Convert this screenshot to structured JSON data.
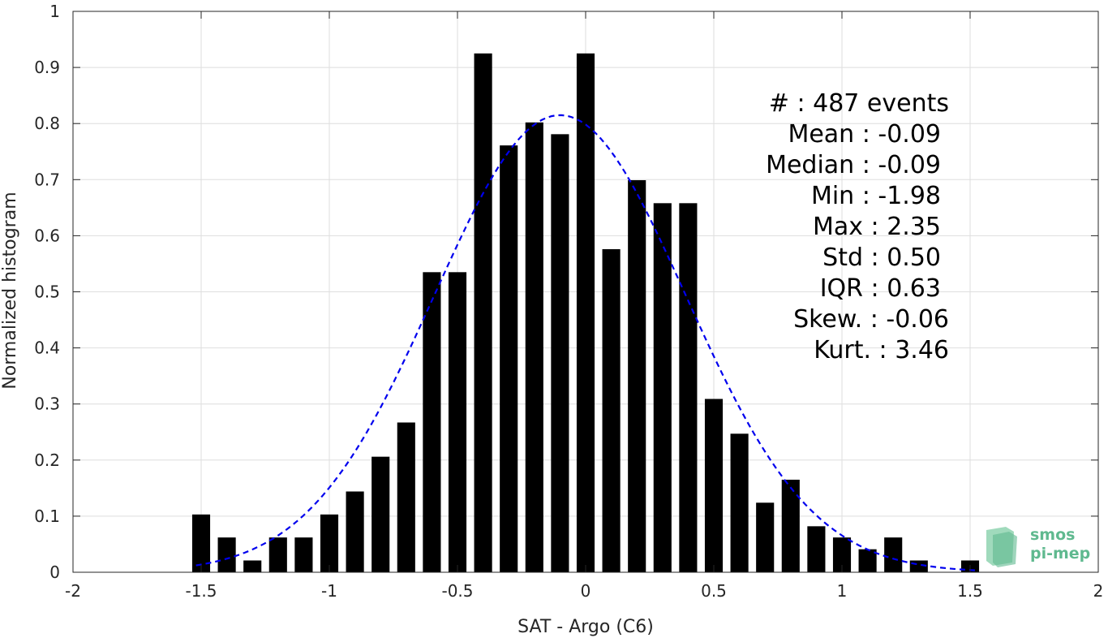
{
  "chart_data": {
    "type": "bar",
    "xlabel": "SAT - Argo (C6)",
    "ylabel": "Normalized histogram",
    "xlim": [
      -2,
      2
    ],
    "ylim": [
      0,
      1
    ],
    "xticks": [
      "-2",
      "-1.5",
      "-1",
      "-0.5",
      "0",
      "0.5",
      "1",
      "1.5",
      "2"
    ],
    "yticks": [
      "0",
      "0.1",
      "0.2",
      "0.3",
      "0.4",
      "0.5",
      "0.6",
      "0.7",
      "0.8",
      "0.9",
      "1"
    ],
    "grid": true,
    "bar_color": "#000000",
    "bar_width": 0.07,
    "bins": [
      {
        "x": -1.5,
        "y": 0.103
      },
      {
        "x": -1.4,
        "y": 0.062
      },
      {
        "x": -1.3,
        "y": 0.021
      },
      {
        "x": -1.2,
        "y": 0.062
      },
      {
        "x": -1.1,
        "y": 0.062
      },
      {
        "x": -1.0,
        "y": 0.103
      },
      {
        "x": -0.9,
        "y": 0.144
      },
      {
        "x": -0.8,
        "y": 0.206
      },
      {
        "x": -0.7,
        "y": 0.267
      },
      {
        "x": -0.6,
        "y": 0.535
      },
      {
        "x": -0.5,
        "y": 0.535
      },
      {
        "x": -0.4,
        "y": 0.925
      },
      {
        "x": -0.3,
        "y": 0.761
      },
      {
        "x": -0.2,
        "y": 0.802
      },
      {
        "x": -0.1,
        "y": 0.781
      },
      {
        "x": 0.0,
        "y": 0.925
      },
      {
        "x": 0.1,
        "y": 0.576
      },
      {
        "x": 0.2,
        "y": 0.699
      },
      {
        "x": 0.3,
        "y": 0.658
      },
      {
        "x": 0.4,
        "y": 0.658
      },
      {
        "x": 0.5,
        "y": 0.309
      },
      {
        "x": 0.6,
        "y": 0.247
      },
      {
        "x": 0.7,
        "y": 0.124
      },
      {
        "x": 0.8,
        "y": 0.165
      },
      {
        "x": 0.9,
        "y": 0.082
      },
      {
        "x": 1.0,
        "y": 0.062
      },
      {
        "x": 1.1,
        "y": 0.041
      },
      {
        "x": 1.2,
        "y": 0.062
      },
      {
        "x": 1.3,
        "y": 0.021
      },
      {
        "x": 1.5,
        "y": 0.021
      }
    ],
    "fit_curve": {
      "type": "gaussian",
      "style": "dashed",
      "color": "#0000ee",
      "mean": -0.1,
      "std": 0.49,
      "peak": 0.815,
      "x_range": [
        -1.52,
        1.52
      ]
    },
    "stats": [
      {
        "label": "#  :",
        "value": "487 events"
      },
      {
        "label": "Mean :",
        "value": "-0.09"
      },
      {
        "label": "Median :",
        "value": "-0.09"
      },
      {
        "label": "Min :",
        "value": "-1.98"
      },
      {
        "label": "Max :",
        "value": "2.35"
      },
      {
        "label": "Std :",
        "value": "0.50"
      },
      {
        "label": "IQR :",
        "value": "0.63"
      },
      {
        "label": "Skew. :",
        "value": "-0.06"
      },
      {
        "label": "Kurt. :",
        "value": "3.46"
      }
    ]
  },
  "logo": {
    "line1": "smos",
    "line2": "pi-mep",
    "color": "#5fb98f"
  }
}
